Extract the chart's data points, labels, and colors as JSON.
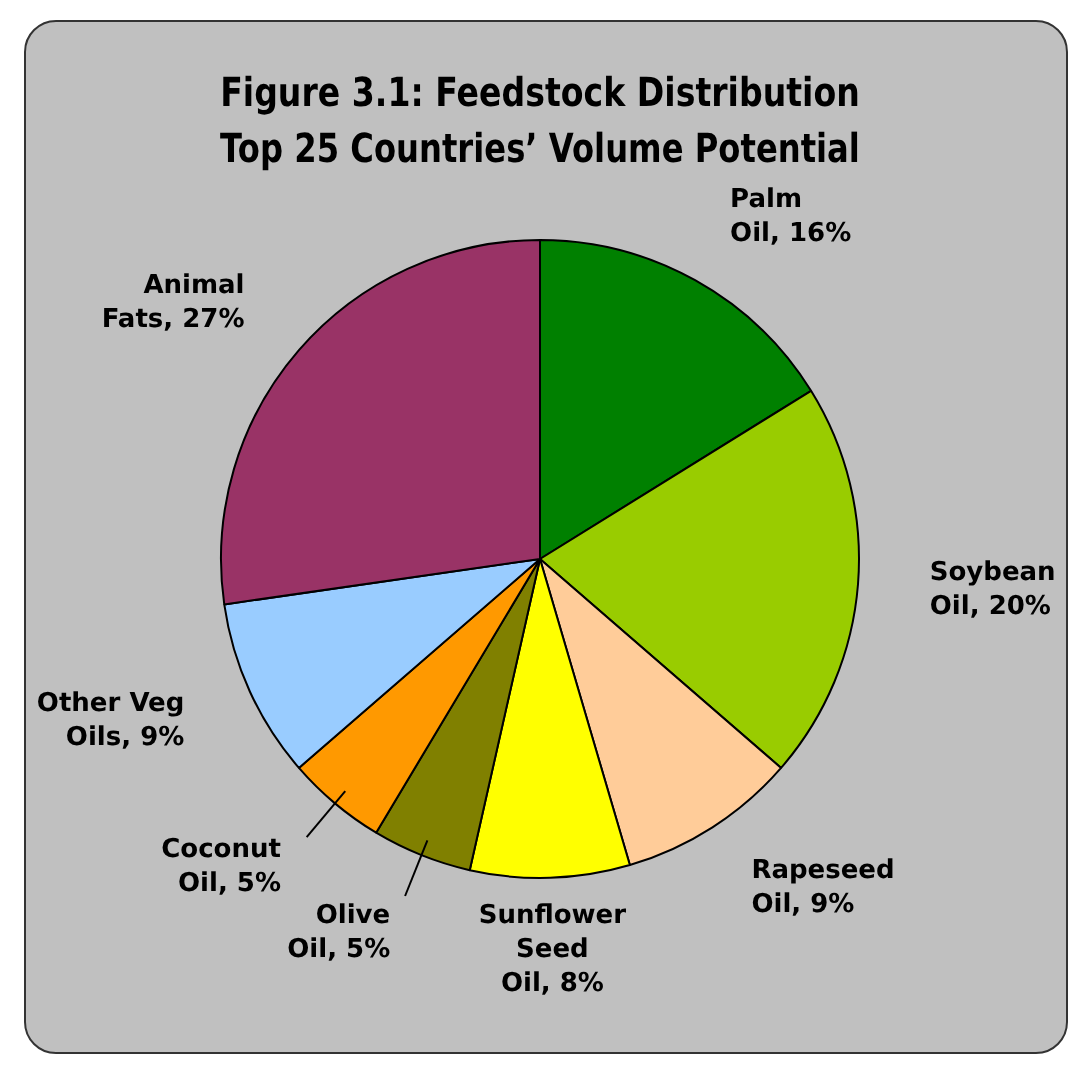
{
  "chart_data": {
    "type": "pie",
    "title": "Figure 3.1: Feedstock Distribution",
    "subtitle": "Top 25 Countries’ Volume Potential",
    "categories": [
      "Palm Oil",
      "Soybean Oil",
      "Rapeseed Oil",
      "Sunflower Seed Oil",
      "Olive Oil",
      "Coconut Oil",
      "Other Veg Oils",
      "Animal Fats"
    ],
    "values": [
      16,
      20,
      9,
      8,
      5,
      5,
      9,
      27
    ],
    "value_labels": [
      "16%",
      "20%",
      "9%",
      "8%",
      "5%",
      "5%",
      "9%",
      "27%"
    ],
    "colors": [
      "#008000",
      "#99cc00",
      "#ffcc99",
      "#ffff00",
      "#808000",
      "#ff9900",
      "#99ccff",
      "#993366"
    ],
    "legend": false
  }
}
